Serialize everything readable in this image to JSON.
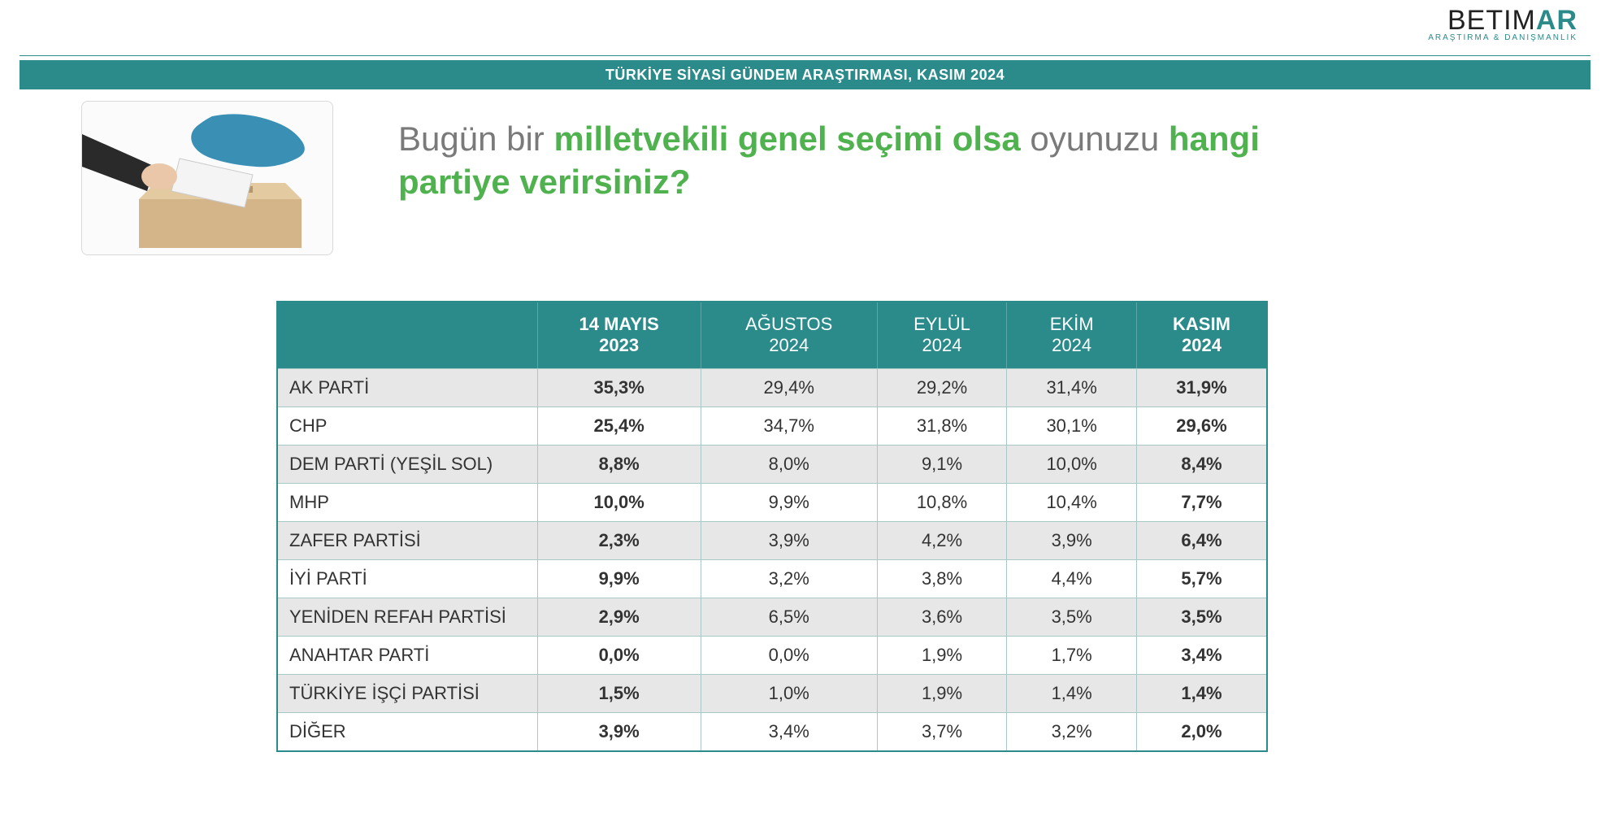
{
  "logo": {
    "text_prefix": "BETIM",
    "text_accent": "AR",
    "sub": "ARAŞTIRMA & DANIŞMANLIK"
  },
  "banner": "TÜRKİYE SİYASİ GÜNDEM ARAŞTIRMASI, KASIM 2024",
  "question": {
    "p1": "Bugün bir ",
    "h1": "milletvekili genel seçimi olsa",
    "p2": " oyunuzu ",
    "h2": "hangi partiye verirsiniz?"
  },
  "table": {
    "columns": [
      {
        "line1": "14 MAYIS",
        "line2": "2023",
        "bold": true
      },
      {
        "line1": "AĞUSTOS",
        "line2": "2024",
        "bold": false
      },
      {
        "line1": "EYLÜL",
        "line2": "2024",
        "bold": false
      },
      {
        "line1": "EKİM",
        "line2": "2024",
        "bold": false
      },
      {
        "line1": "KASIM",
        "line2": "2024",
        "bold": true
      }
    ],
    "bold_value_cols": [
      0,
      4
    ],
    "rows": [
      {
        "label": "AK PARTİ",
        "vals": [
          "35,3%",
          "29,4%",
          "29,2%",
          "31,4%",
          "31,9%"
        ]
      },
      {
        "label": "CHP",
        "vals": [
          "25,4%",
          "34,7%",
          "31,8%",
          "30,1%",
          "29,6%"
        ]
      },
      {
        "label": "DEM PARTİ (YEŞİL SOL)",
        "vals": [
          "8,8%",
          "8,0%",
          "9,1%",
          "10,0%",
          "8,4%"
        ]
      },
      {
        "label": "MHP",
        "vals": [
          "10,0%",
          "9,9%",
          "10,8%",
          "10,4%",
          "7,7%"
        ]
      },
      {
        "label": "ZAFER PARTİSİ",
        "vals": [
          "2,3%",
          "3,9%",
          "4,2%",
          "3,9%",
          "6,4%"
        ]
      },
      {
        "label": "İYİ PARTİ",
        "vals": [
          "9,9%",
          "3,2%",
          "3,8%",
          "4,4%",
          "5,7%"
        ]
      },
      {
        "label": "YENİDEN REFAH PARTİSİ",
        "vals": [
          "2,9%",
          "6,5%",
          "3,6%",
          "3,5%",
          "3,5%"
        ]
      },
      {
        "label": "ANAHTAR PARTİ",
        "vals": [
          "0,0%",
          "0,0%",
          "1,9%",
          "1,7%",
          "3,4%"
        ]
      },
      {
        "label": "TÜRKİYE İŞÇİ PARTİSİ",
        "vals": [
          "1,5%",
          "1,0%",
          "1,9%",
          "1,4%",
          "1,4%"
        ]
      },
      {
        "label": "DİĞER",
        "vals": [
          "3,9%",
          "3,4%",
          "3,7%",
          "3,2%",
          "2,0%"
        ]
      }
    ]
  },
  "colors": {
    "teal": "#2b8a8a",
    "green": "#4fb24f",
    "grey_text": "#7a7a7a",
    "row_alt": "#e7e7e7",
    "white": "#ffffff"
  }
}
